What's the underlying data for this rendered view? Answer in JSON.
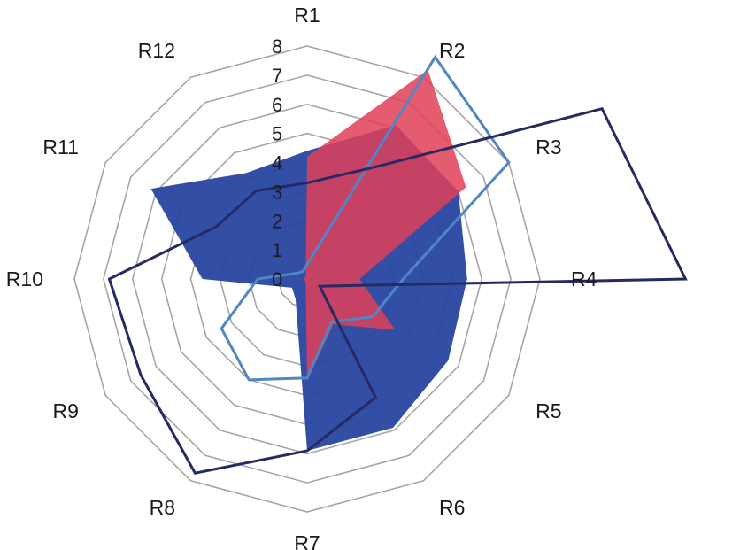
{
  "chart_data": {
    "type": "radar",
    "categories": [
      "R1",
      "R2",
      "R3",
      "R4",
      "R5",
      "R6",
      "R7",
      "R8",
      "R9",
      "R10",
      "R11",
      "R12"
    ],
    "radial_ticks": [
      "0",
      "1",
      "2",
      "3",
      "4",
      "5",
      "6",
      "7",
      "8"
    ],
    "rlim": [
      0,
      8
    ],
    "grid": true,
    "series": [
      {
        "style": "filled",
        "color": "#2846a0",
        "opacity": 0.95,
        "values": [
          4.4,
          6.1,
          6.0,
          5.5,
          5.6,
          5.9,
          5.9,
          0.8,
          0.6,
          3.6,
          6.2,
          4.2
        ]
      },
      {
        "style": "filled",
        "color": "#e04058",
        "opacity": 0.85,
        "values": [
          4.2,
          8.3,
          6.3,
          1.8,
          3.5,
          1.8,
          3.5,
          0.1,
          0.1,
          0.1,
          0.1,
          0.1
        ]
      },
      {
        "style": "line",
        "color": "#4f86c4",
        "values": [
          0.5,
          8.8,
          8.0,
          3.3,
          2.6,
          1.7,
          3.4,
          4.0,
          3.4,
          1.7,
          0.4,
          0.3
        ]
      },
      {
        "style": "line",
        "color": "#262a63",
        "values": [
          3.3,
          4.4,
          11.7,
          13.0,
          0.5,
          4.7,
          5.9,
          7.7,
          6.6,
          6.8,
          3.6,
          3.5
        ]
      }
    ]
  }
}
